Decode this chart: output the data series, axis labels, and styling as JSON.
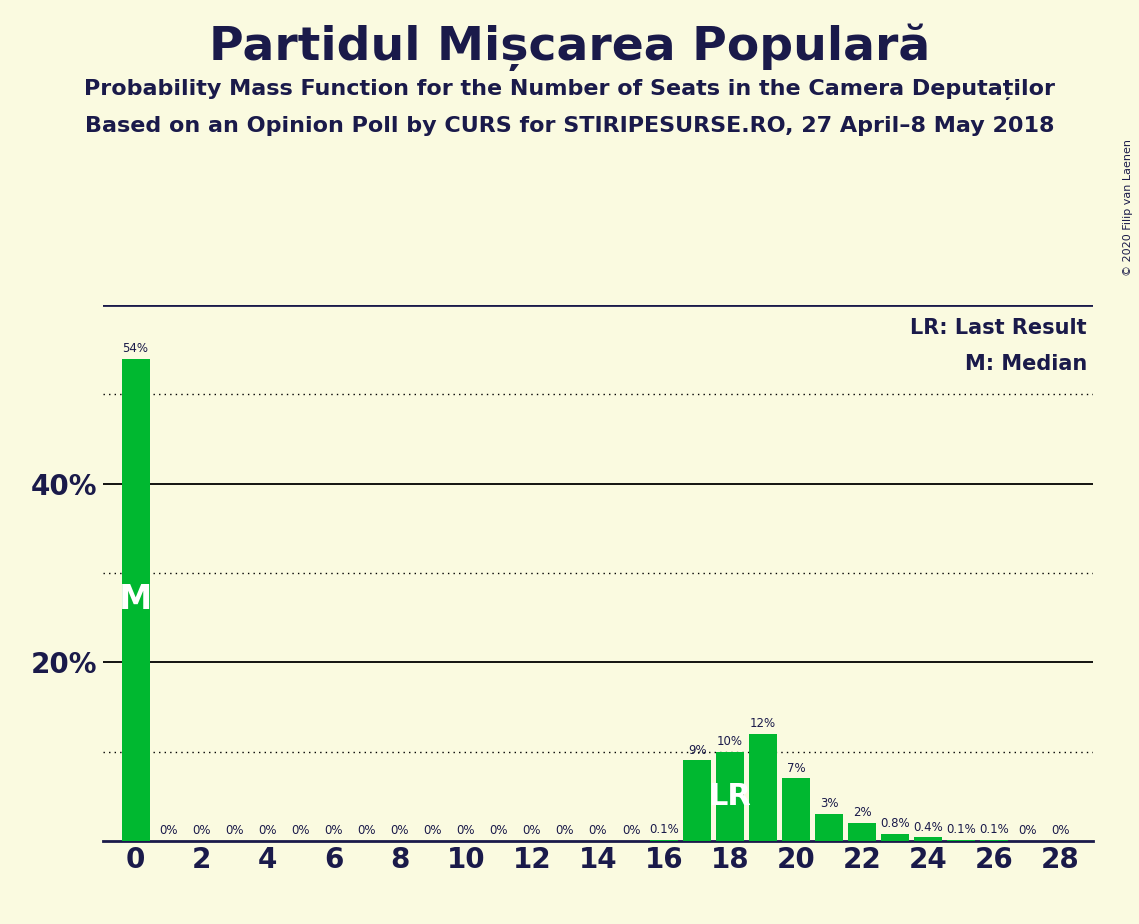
{
  "title": "Partidul Mișcarea Populară",
  "subtitle1": "Probability Mass Function for the Number of Seats in the Camera Deputaților",
  "subtitle2": "Based on an Opinion Poll by CURS for STIRIPESURSE.RO, 27 April–8 May 2018",
  "copyright": "© 2020 Filip van Laenen",
  "legend_lr": "LR: Last Result",
  "legend_m": "M: Median",
  "background_color": "#FAFAE0",
  "bar_color": "#00B830",
  "text_color": "#1a1a4a",
  "seats": [
    0,
    1,
    2,
    3,
    4,
    5,
    6,
    7,
    8,
    9,
    10,
    11,
    12,
    13,
    14,
    15,
    16,
    17,
    18,
    19,
    20,
    21,
    22,
    23,
    24,
    25,
    26,
    27,
    28
  ],
  "probabilities": [
    54.0,
    0.0,
    0.0,
    0.0,
    0.0,
    0.0,
    0.0,
    0.0,
    0.0,
    0.0,
    0.0,
    0.0,
    0.0,
    0.0,
    0.0,
    0.0,
    0.1,
    9.0,
    10.0,
    12.0,
    7.0,
    3.0,
    2.0,
    0.8,
    0.4,
    0.1,
    0.1,
    0.0,
    0.0
  ],
  "labels": [
    "54%",
    "0%",
    "0%",
    "0%",
    "0%",
    "0%",
    "0%",
    "0%",
    "0%",
    "0%",
    "0%",
    "0%",
    "0%",
    "0%",
    "0%",
    "0%",
    "0.1%",
    "9%",
    "10%",
    "12%",
    "7%",
    "3%",
    "2%",
    "0.8%",
    "0.4%",
    "0.1%",
    "0.1%",
    "0%",
    "0%"
  ],
  "median_seat": 0,
  "lr_seat": 18,
  "ylim": [
    0,
    60
  ],
  "solid_lines": [
    20,
    40
  ],
  "dotted_lines": [
    10,
    30,
    50
  ],
  "xticks": [
    0,
    2,
    4,
    6,
    8,
    10,
    12,
    14,
    16,
    18,
    20,
    22,
    24,
    26,
    28
  ],
  "bar_width": 0.85
}
